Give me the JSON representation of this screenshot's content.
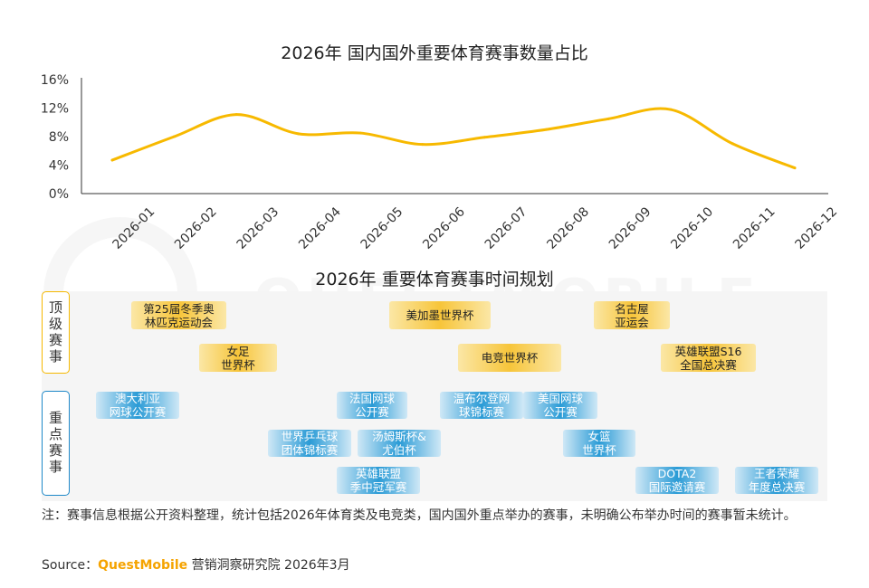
{
  "chart_title": "2026年 国内国外重要体育赛事数量占比",
  "timeline_title": "2026年 重要体育赛事时间规划",
  "chart_data": {
    "type": "line",
    "title": "2026年 国内国外重要体育赛事数量占比",
    "categories": [
      "2026-01",
      "2026-02",
      "2026-03",
      "2026-04",
      "2026-05",
      "2026-06",
      "2026-07",
      "2026-08",
      "2026-09",
      "2026-10",
      "2026-11",
      "2026-12"
    ],
    "series": [
      {
        "values": [
          4.7,
          8.0,
          11.1,
          8.4,
          8.5,
          6.9,
          7.9,
          9.0,
          10.5,
          11.8,
          7.0,
          3.6
        ]
      }
    ],
    "yticks": [
      "0%",
      "4%",
      "8%",
      "12%",
      "16%"
    ],
    "ylim": [
      0,
      16
    ],
    "color": "#f7b900",
    "grid": false
  },
  "categories": {
    "top": "顶级赛事",
    "key": "重点赛事"
  },
  "events": {
    "top": [
      "第25届冬季奥\n林匹克运动会",
      "女足\n世界杯",
      "美加墨世界杯",
      "电竞世界杯",
      "名古屋\n亚运会",
      "英雄联盟S16\n全国总决赛"
    ],
    "key": [
      "澳大利亚\n网球公开赛",
      "世界乒乓球\n团体锦标赛",
      "法国网球\n公开赛",
      "汤姆斯杯&\n尤伯杯",
      "英雄联盟\n季中冠军赛",
      "温布尔登网\n球锦标赛",
      "美国网球\n公开赛",
      "女篮\n世界杯",
      "DOTA2\n国际邀请赛",
      "王者荣耀\n年度总决赛"
    ]
  },
  "note": "注：赛事信息根据公开资料整理，统计包括2026年体育类及电竞类，国内国外重点举办的赛事，未明确公布举办时间的赛事暂未统计。",
  "source_label": "Source：",
  "source_brand": "QuestMobile",
  "source_rest": " 营销洞察研究院 2026年3月"
}
